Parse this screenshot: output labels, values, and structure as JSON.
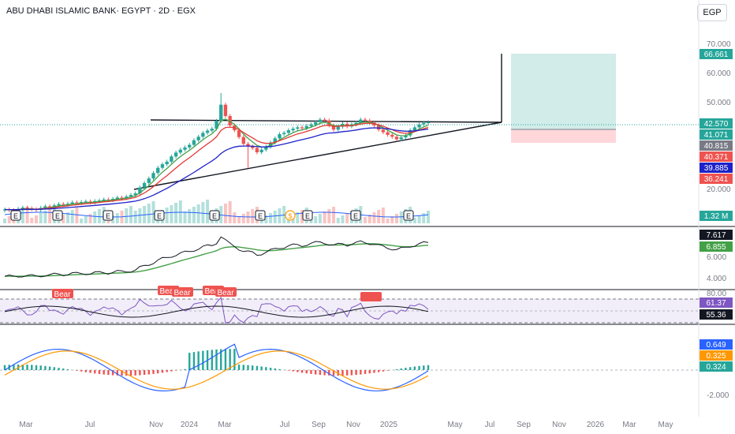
{
  "header": {
    "title": "ABU DHABI ISLAMIC BANK· EGYPT · 2D · EGX",
    "currency": "EGP"
  },
  "colors": {
    "up": "#26a69a",
    "down": "#ef5350",
    "ema_fast": "#e53935",
    "ema_mid": "#43a047",
    "ema_slow": "#1e22c8",
    "rsi": "#7e57c2",
    "macd": "#2962ff",
    "signal": "#ff9800"
  },
  "chart_data": [
    {
      "type": "candlestick",
      "name": "price",
      "y_ticks": [
        "70.000",
        "60.000",
        "50.000",
        "20.000"
      ],
      "price_axis_labels": [
        {
          "text": "66.661",
          "color": "#26a69a"
        },
        {
          "text": "42.570",
          "color": "#26a69a"
        },
        {
          "text": "41.071",
          "color": "#26a69a"
        },
        {
          "text": "40.815",
          "color": "#787b86"
        },
        {
          "text": "40.371",
          "color": "#ef5350"
        },
        {
          "text": "39.885",
          "color": "#1e22c8"
        },
        {
          "text": "36.241",
          "color": "#ef5350"
        }
      ],
      "close_series": [
        15.6,
        15.4,
        15.2,
        15.8,
        16.2,
        16.0,
        15.7,
        15.5,
        16.1,
        16.6,
        16.4,
        16.9,
        17.3,
        17.1,
        17.4,
        17.8,
        17.6,
        17.9,
        18.1,
        17.8,
        18.2,
        18.4,
        18.7,
        18.5,
        18.9,
        19.3,
        19.1,
        19.6,
        20.1,
        20.6,
        22.4,
        23.8,
        25.2,
        26.9,
        28.5,
        29.6,
        30.4,
        32.0,
        33.2,
        34.1,
        34.8,
        35.6,
        37.0,
        38.1,
        39.3,
        40.0,
        40.6,
        43.0,
        48.0,
        44.5,
        41.6,
        40.1,
        38.0,
        35.9,
        35.1,
        34.6,
        33.3,
        34.1,
        35.0,
        36.3,
        37.6,
        38.9,
        39.3,
        40.1,
        40.6,
        41.0,
        40.7,
        41.4,
        41.9,
        42.6,
        43.4,
        43.1,
        41.6,
        40.3,
        41.2,
        42.1,
        41.3,
        41.9,
        42.4,
        43.4,
        43.1,
        42.5,
        41.6,
        40.3,
        39.5,
        38.7,
        38.1,
        37.3,
        37.9,
        38.5,
        40.1,
        41.0,
        41.9,
        42.4,
        42.57
      ],
      "volume_ticks": [
        "1.32 M"
      ],
      "event_markers": [
        "E",
        "E",
        "E",
        "E",
        "E",
        "E",
        "$",
        "E",
        "E",
        "E"
      ],
      "trade_target_label": "66.661"
    },
    {
      "type": "line",
      "name": "indicator-1",
      "y_ticks": [
        "6.000",
        "4.000"
      ],
      "value_labels": [
        {
          "text": "7.617",
          "color": "#131722"
        },
        {
          "text": "6.855",
          "color": "#43a047"
        }
      ]
    },
    {
      "type": "line",
      "name": "rsi",
      "y_ticks": [
        "80.00"
      ],
      "value_labels": [
        {
          "text": "61.37",
          "color": "#7e57c2"
        },
        {
          "text": "55.36",
          "color": "#131722"
        }
      ],
      "bear_labels": [
        "Bear",
        "Bear",
        "Bear",
        "Bear",
        "Bear"
      ]
    },
    {
      "type": "bar",
      "name": "macd",
      "y_ticks": [
        "-2.000"
      ],
      "value_labels": [
        {
          "text": "0.649",
          "color": "#2962ff"
        },
        {
          "text": "0.325",
          "color": "#ff9800"
        },
        {
          "text": "0.324",
          "color": "#26a69a"
        }
      ]
    }
  ],
  "x_axis": [
    "Mar",
    "Jul",
    "Nov",
    "2024",
    "Mar",
    "Jul",
    "Sep",
    "Nov",
    "2025",
    "May",
    "Jul",
    "Sep",
    "Nov",
    "2026",
    "Mar",
    "May"
  ]
}
